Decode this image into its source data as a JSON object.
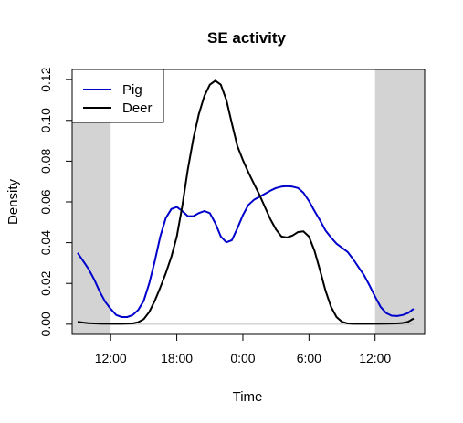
{
  "chart_data": {
    "type": "line",
    "title": "SE activity",
    "xlabel": "Time",
    "ylabel": "Density",
    "x_unit": "hours since 12:00 (shifted scale, 8.5 to 40.5)",
    "xlim": [
      8.5,
      40.5
    ],
    "ylim": [
      -0.005,
      0.125
    ],
    "x_ticks": [
      {
        "x": 12,
        "label": "12:00"
      },
      {
        "x": 18,
        "label": "18:00"
      },
      {
        "x": 24,
        "label": "0:00"
      },
      {
        "x": 30,
        "label": "6:00"
      },
      {
        "x": 36,
        "label": "12:00"
      }
    ],
    "y_ticks": [
      {
        "y": 0.0,
        "label": "0.00"
      },
      {
        "y": 0.02,
        "label": "0.02"
      },
      {
        "y": 0.04,
        "label": "0.04"
      },
      {
        "y": 0.06,
        "label": "0.06"
      },
      {
        "y": 0.08,
        "label": "0.08"
      },
      {
        "y": 0.1,
        "label": "0.10"
      },
      {
        "y": 0.12,
        "label": "0.12"
      }
    ],
    "shaded_regions": [
      {
        "x0": 8.5,
        "x1": 12
      },
      {
        "x0": 36,
        "x1": 40.5
      }
    ],
    "reference_line_y": 0,
    "grid": false,
    "legend": {
      "placement": "top-left"
    },
    "series": [
      {
        "name": "Pig",
        "color": "#0000cc",
        "points": [
          [
            9.0,
            0.035
          ],
          [
            9.5,
            0.031
          ],
          [
            10.0,
            0.027
          ],
          [
            10.5,
            0.022
          ],
          [
            11.0,
            0.016
          ],
          [
            11.5,
            0.011
          ],
          [
            12.0,
            0.0075
          ],
          [
            12.5,
            0.0045
          ],
          [
            13.0,
            0.0035
          ],
          [
            13.5,
            0.0035
          ],
          [
            14.0,
            0.0045
          ],
          [
            14.5,
            0.007
          ],
          [
            15.0,
            0.0115
          ],
          [
            15.5,
            0.02
          ],
          [
            16.0,
            0.031
          ],
          [
            16.5,
            0.043
          ],
          [
            17.0,
            0.052
          ],
          [
            17.5,
            0.0565
          ],
          [
            18.0,
            0.0575
          ],
          [
            18.5,
            0.0555
          ],
          [
            19.0,
            0.053
          ],
          [
            19.5,
            0.053
          ],
          [
            20.0,
            0.0545
          ],
          [
            20.5,
            0.0555
          ],
          [
            21.0,
            0.0545
          ],
          [
            21.5,
            0.0495
          ],
          [
            22.0,
            0.043
          ],
          [
            22.5,
            0.0402
          ],
          [
            23.0,
            0.0412
          ],
          [
            23.5,
            0.047
          ],
          [
            24.0,
            0.0535
          ],
          [
            24.5,
            0.0585
          ],
          [
            25.0,
            0.061
          ],
          [
            25.5,
            0.0625
          ],
          [
            26.0,
            0.064
          ],
          [
            26.5,
            0.0655
          ],
          [
            27.0,
            0.0668
          ],
          [
            27.5,
            0.0675
          ],
          [
            28.0,
            0.0677
          ],
          [
            28.5,
            0.0675
          ],
          [
            29.0,
            0.0668
          ],
          [
            29.5,
            0.0645
          ],
          [
            30.0,
            0.0605
          ],
          [
            30.5,
            0.0555
          ],
          [
            31.0,
            0.051
          ],
          [
            31.5,
            0.046
          ],
          [
            32.0,
            0.0425
          ],
          [
            32.5,
            0.0395
          ],
          [
            33.0,
            0.0375
          ],
          [
            33.5,
            0.0355
          ],
          [
            34.0,
            0.032
          ],
          [
            34.5,
            0.028
          ],
          [
            35.0,
            0.024
          ],
          [
            35.5,
            0.019
          ],
          [
            36.0,
            0.0135
          ],
          [
            36.5,
            0.0085
          ],
          [
            37.0,
            0.0055
          ],
          [
            37.5,
            0.0042
          ],
          [
            38.0,
            0.004
          ],
          [
            38.5,
            0.0045
          ],
          [
            39.0,
            0.0055
          ],
          [
            39.5,
            0.0075
          ]
        ]
      },
      {
        "name": "Deer",
        "color": "#000000",
        "points": [
          [
            9.0,
            0.0012
          ],
          [
            9.5,
            0.0008
          ],
          [
            10.0,
            0.0005
          ],
          [
            11.0,
            0.0003
          ],
          [
            12.0,
            0.0002
          ],
          [
            13.0,
            0.0002
          ],
          [
            14.0,
            0.0004
          ],
          [
            14.5,
            0.001
          ],
          [
            15.0,
            0.0025
          ],
          [
            15.5,
            0.006
          ],
          [
            16.0,
            0.0115
          ],
          [
            16.5,
            0.018
          ],
          [
            17.0,
            0.025
          ],
          [
            17.5,
            0.033
          ],
          [
            18.0,
            0.043
          ],
          [
            18.5,
            0.058
          ],
          [
            19.0,
            0.076
          ],
          [
            19.5,
            0.091
          ],
          [
            20.0,
            0.103
          ],
          [
            20.5,
            0.112
          ],
          [
            21.0,
            0.1175
          ],
          [
            21.5,
            0.1195
          ],
          [
            22.0,
            0.1175
          ],
          [
            22.5,
            0.11
          ],
          [
            23.0,
            0.0985
          ],
          [
            23.5,
            0.0875
          ],
          [
            24.0,
            0.0805
          ],
          [
            24.5,
            0.0745
          ],
          [
            25.0,
            0.069
          ],
          [
            25.5,
            0.0635
          ],
          [
            26.0,
            0.0575
          ],
          [
            26.5,
            0.0515
          ],
          [
            27.0,
            0.0465
          ],
          [
            27.5,
            0.043
          ],
          [
            28.0,
            0.0425
          ],
          [
            28.5,
            0.0435
          ],
          [
            29.0,
            0.0452
          ],
          [
            29.5,
            0.0455
          ],
          [
            30.0,
            0.043
          ],
          [
            30.5,
            0.036
          ],
          [
            31.0,
            0.0265
          ],
          [
            31.5,
            0.0165
          ],
          [
            32.0,
            0.0085
          ],
          [
            32.5,
            0.0035
          ],
          [
            33.0,
            0.0012
          ],
          [
            33.5,
            0.0004
          ],
          [
            34.0,
            0.0002
          ],
          [
            35.0,
            0.0002
          ],
          [
            36.0,
            0.0002
          ],
          [
            37.0,
            0.0003
          ],
          [
            38.0,
            0.0004
          ],
          [
            38.5,
            0.0006
          ],
          [
            39.0,
            0.0012
          ],
          [
            39.5,
            0.0028
          ]
        ]
      }
    ]
  }
}
